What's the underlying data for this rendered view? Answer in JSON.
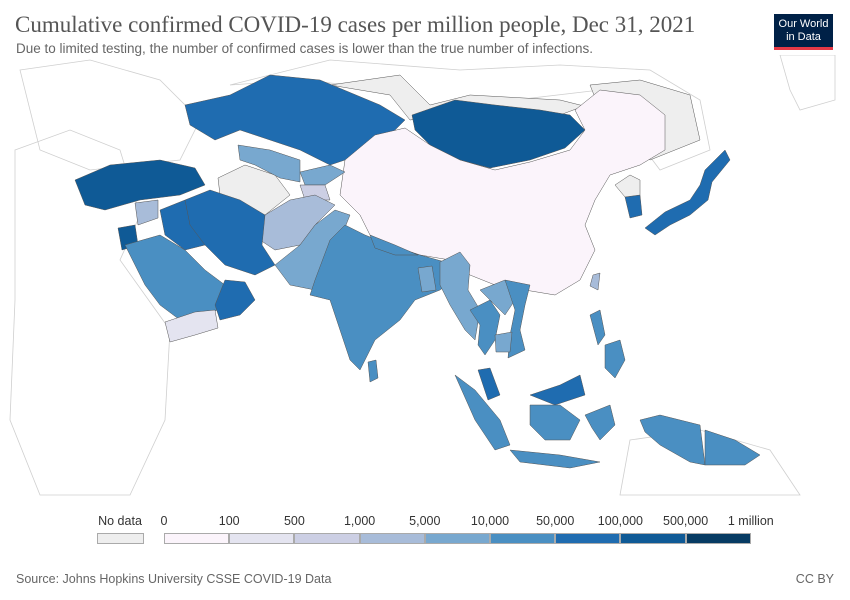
{
  "title": "Cumulative confirmed COVID-19 cases per million people, Dec 31, 2021",
  "subtitle": "Due to limited testing, the number of confirmed cases is lower than the true number of infections.",
  "logo": {
    "line1": "Our World",
    "line2": "in Data"
  },
  "legend": {
    "nodata_label": "No data",
    "nodata_color": "#eeeeee",
    "breaks": [
      "0",
      "100",
      "500",
      "1,000",
      "5,000",
      "10,000",
      "50,000",
      "100,000",
      "500,000",
      "1 million"
    ],
    "colors": [
      "#fbf4fb",
      "#e4e4f0",
      "#cccfe4",
      "#a8bcd9",
      "#78a8cf",
      "#4a8fc2",
      "#1f6cb0",
      "#0f5a96",
      "#073b63"
    ]
  },
  "source": "Source: Johns Hopkins University CSSE COVID-19 Data",
  "license": "CC BY",
  "map_data": {
    "region": "Asia",
    "countries": [
      {
        "name": "China",
        "color": "#fbf4fb"
      },
      {
        "name": "Mongolia",
        "color": "#0f5a96"
      },
      {
        "name": "Kazakhstan",
        "color": "#1f6cb0"
      },
      {
        "name": "Russia",
        "color": "#eeeeee"
      },
      {
        "name": "India",
        "color": "#4a8fc2"
      },
      {
        "name": "Pakistan",
        "color": "#78a8cf"
      },
      {
        "name": "Afghanistan",
        "color": "#a8bcd9"
      },
      {
        "name": "Iran",
        "color": "#1f6cb0"
      },
      {
        "name": "Turkey",
        "color": "#0f5a96"
      },
      {
        "name": "Saudi Arabia",
        "color": "#4a8fc2"
      },
      {
        "name": "Yemen",
        "color": "#e4e4f0"
      },
      {
        "name": "Oman",
        "color": "#1f6cb0"
      },
      {
        "name": "Iraq",
        "color": "#1f6cb0"
      },
      {
        "name": "Syria",
        "color": "#a8bcd9"
      },
      {
        "name": "Jordan",
        "color": "#0f5a96"
      },
      {
        "name": "Turkmenistan",
        "color": "#eeeeee"
      },
      {
        "name": "Uzbekistan",
        "color": "#78a8cf"
      },
      {
        "name": "Kyrgyzstan",
        "color": "#78a8cf"
      },
      {
        "name": "Tajikistan",
        "color": "#cccfe4"
      },
      {
        "name": "Japan",
        "color": "#1f6cb0"
      },
      {
        "name": "South Korea",
        "color": "#1f6cb0"
      },
      {
        "name": "North Korea",
        "color": "#eeeeee"
      },
      {
        "name": "Myanmar",
        "color": "#78a8cf"
      },
      {
        "name": "Thailand",
        "color": "#4a8fc2"
      },
      {
        "name": "Vietnam",
        "color": "#4a8fc2"
      },
      {
        "name": "Cambodia",
        "color": "#78a8cf"
      },
      {
        "name": "Laos",
        "color": "#78a8cf"
      },
      {
        "name": "Malaysia",
        "color": "#1f6cb0"
      },
      {
        "name": "Indonesia",
        "color": "#4a8fc2"
      },
      {
        "name": "Philippines",
        "color": "#4a8fc2"
      },
      {
        "name": "Papua New Guinea",
        "color": "#4a8fc2"
      },
      {
        "name": "Sri Lanka",
        "color": "#4a8fc2"
      },
      {
        "name": "Nepal",
        "color": "#4a8fc2"
      },
      {
        "name": "Bangladesh",
        "color": "#78a8cf"
      },
      {
        "name": "Taiwan",
        "color": "#a8bcd9"
      }
    ]
  }
}
